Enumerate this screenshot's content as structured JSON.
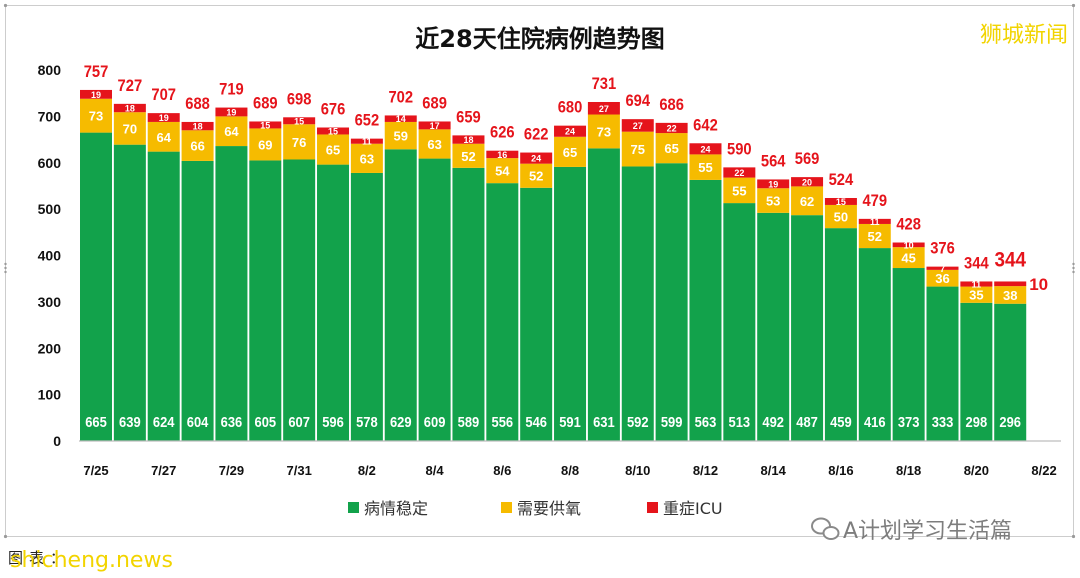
{
  "brand": {
    "watermark": "狮城新闻",
    "watermark_color": "#f2d400",
    "source_label": "图表：",
    "source_site": "shicheng.news",
    "wechat_account": "A计划学习生活篇",
    "wechat_icon": "wechat-icon",
    "total_label_color": "#e5141b"
  },
  "chart_data": {
    "type": "bar",
    "stacked": true,
    "title": "近28天住院病例趋势图",
    "x_tick_labels": [
      "7/25",
      "7/27",
      "7/29",
      "7/31",
      "8/2",
      "8/4",
      "8/6",
      "8/8",
      "8/10",
      "8/12",
      "8/14",
      "8/16",
      "8/18",
      "8/20",
      "8/22"
    ],
    "y_ticks": [
      0,
      100,
      200,
      300,
      400,
      500,
      600,
      700,
      800
    ],
    "ylim": [
      0,
      800
    ],
    "grid": false,
    "legend_position": "bottom",
    "series": [
      {
        "name": "病情稳定",
        "color": "#12a24b",
        "values": [
          665,
          639,
          624,
          604,
          636,
          605,
          607,
          596,
          578,
          629,
          609,
          589,
          556,
          546,
          591,
          631,
          592,
          599,
          563,
          513,
          492,
          487,
          459,
          416,
          373,
          333,
          298,
          296
        ]
      },
      {
        "name": "需要供氧",
        "color": "#f6bb00",
        "values": [
          73,
          70,
          64,
          66,
          64,
          69,
          76,
          65,
          63,
          59,
          63,
          52,
          54,
          52,
          65,
          73,
          75,
          65,
          55,
          55,
          53,
          62,
          50,
          52,
          45,
          36,
          35,
          38
        ]
      },
      {
        "name": "重症ICU",
        "color": "#e5141b",
        "values": [
          19,
          18,
          19,
          18,
          19,
          15,
          15,
          15,
          11,
          14,
          17,
          18,
          16,
          24,
          24,
          27,
          27,
          22,
          24,
          22,
          19,
          20,
          15,
          11,
          10,
          7,
          11,
          10
        ]
      }
    ],
    "totals": [
      757,
      727,
      707,
      688,
      719,
      689,
      698,
      676,
      652,
      702,
      689,
      659,
      626,
      622,
      680,
      731,
      694,
      686,
      642,
      590,
      564,
      569,
      524,
      479,
      428,
      376,
      344,
      344
    ]
  }
}
